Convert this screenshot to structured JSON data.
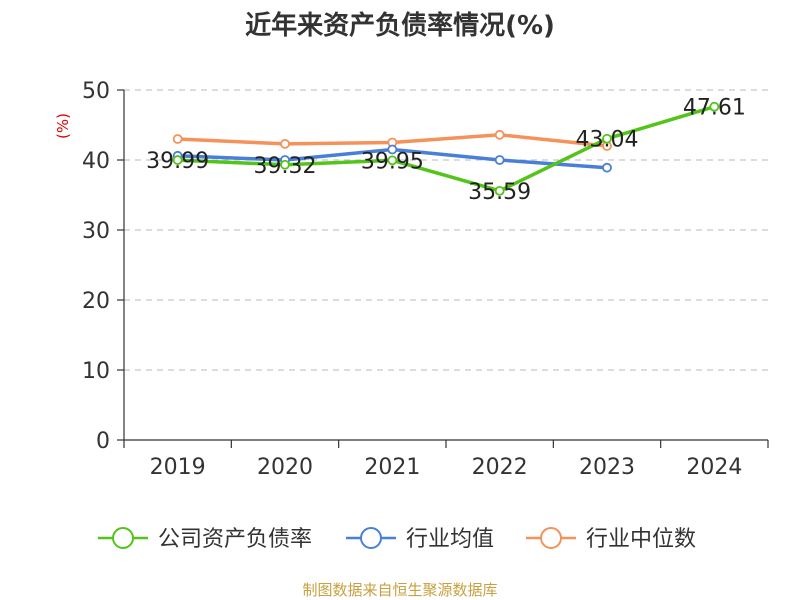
{
  "chart_data": {
    "type": "line",
    "title": "近年来资产负债率情况(%)",
    "ylabel": "(%)",
    "xlabel": "",
    "categories": [
      "2019",
      "2020",
      "2021",
      "2022",
      "2023",
      "2024"
    ],
    "y_ticks": [
      "0",
      "10",
      "20",
      "30",
      "40",
      "50"
    ],
    "ylim": [
      0,
      50
    ],
    "grid": "horizontal-dashed",
    "legend_position": "bottom",
    "series": [
      {
        "name": "公司资产负债率",
        "color": "#52c41a",
        "values": [
          39.99,
          39.32,
          39.95,
          35.59,
          43.04,
          47.61
        ],
        "labels": [
          "39.99",
          "39.32",
          "39.95",
          "35.59",
          "43.04",
          "47.61"
        ]
      },
      {
        "name": "行业均值",
        "color": "#4a7fd9",
        "values": [
          40.6,
          40.0,
          41.5,
          40.0,
          38.9,
          null
        ]
      },
      {
        "name": "行业中位数",
        "color": "#f5925a",
        "values": [
          43.0,
          42.3,
          42.5,
          43.6,
          42.0,
          null
        ]
      }
    ]
  },
  "footer": {
    "source": "制图数据来自恒生聚源数据库"
  }
}
